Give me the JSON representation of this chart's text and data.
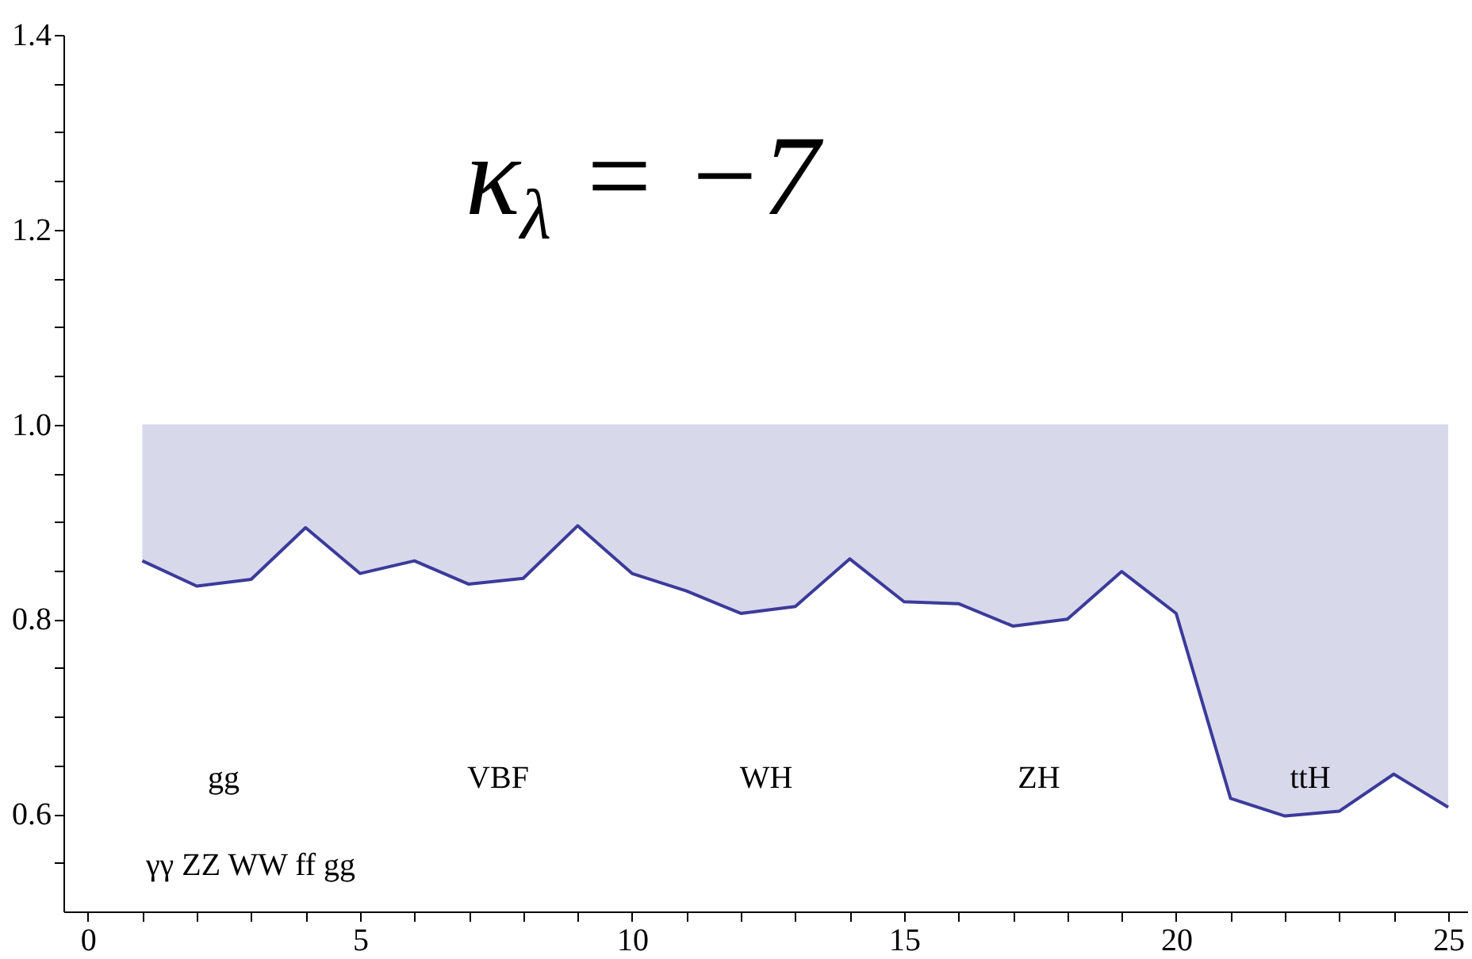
{
  "chart_data": {
    "type": "line",
    "x": [
      1,
      2,
      3,
      4,
      5,
      6,
      7,
      8,
      9,
      10,
      11,
      12,
      13,
      14,
      15,
      16,
      17,
      18,
      19,
      20,
      21,
      22,
      23,
      24,
      25
    ],
    "series": [
      {
        "color": "#3b3b9b",
        "values": [
          0.86,
          0.834,
          0.841,
          0.894,
          0.847,
          0.86,
          0.836,
          0.842,
          0.896,
          0.847,
          0.829,
          0.806,
          0.813,
          0.862,
          0.818,
          0.816,
          0.793,
          0.8,
          0.849,
          0.806,
          0.616,
          0.598,
          0.603,
          0.641,
          0.607
        ],
        "lower": [
          0.86,
          0.834,
          0.841,
          0.894,
          0.847,
          0.86,
          0.836,
          0.842,
          0.896,
          0.847,
          0.829,
          0.806,
          0.813,
          0.862,
          0.818,
          0.816,
          0.793,
          0.8,
          0.849,
          0.806,
          0.616,
          0.598,
          0.603,
          0.641,
          0.607
        ],
        "upper": [
          1,
          1,
          1,
          1,
          1,
          1,
          1,
          1,
          1,
          1,
          1,
          1,
          1,
          1,
          1,
          1,
          1,
          1,
          1,
          1,
          1,
          1,
          1,
          1,
          1
        ]
      }
    ],
    "xlim": [
      -0.45,
      25.35
    ],
    "ylim": [
      0.5,
      1.4
    ],
    "xticks": [
      0,
      {
        "value": 1,
        "label": null
      },
      {
        "value": 2,
        "label": null
      },
      {
        "value": 3,
        "label": null
      },
      {
        "value": 4,
        "label": null
      },
      5,
      {
        "value": 6,
        "label": null
      },
      {
        "value": 7,
        "label": null
      },
      {
        "value": 8,
        "label": null
      },
      {
        "value": 9,
        "label": null
      },
      10,
      {
        "value": 11,
        "label": null
      },
      {
        "value": 12,
        "label": null
      },
      {
        "value": 13,
        "label": null
      },
      {
        "value": 14,
        "label": null
      },
      15,
      {
        "value": 16,
        "label": null
      },
      {
        "value": 17,
        "label": null
      },
      {
        "value": 18,
        "label": null
      },
      {
        "value": 19,
        "label": null
      },
      20,
      {
        "value": 21,
        "label": null
      },
      {
        "value": 22,
        "label": null
      },
      {
        "value": 23,
        "label": null
      },
      {
        "value": 24,
        "label": null
      },
      25
    ],
    "yticks": [
      {
        "value": 0.55,
        "label": null
      },
      0.6,
      {
        "value": 0.65,
        "label": null
      },
      {
        "value": 0.7,
        "label": null
      },
      {
        "value": 0.75,
        "label": null
      },
      0.8,
      {
        "value": 0.85,
        "label": null
      },
      {
        "value": 0.9,
        "label": null
      },
      {
        "value": 0.95,
        "label": null
      },
      {
        "value": 1,
        "label": "1.0"
      },
      {
        "value": 1.05,
        "label": null
      },
      {
        "value": 1.1,
        "label": null
      },
      {
        "value": 1.15,
        "label": null
      },
      1.2,
      {
        "value": 1.25,
        "label": null
      },
      {
        "value": 1.3,
        "label": null
      },
      {
        "value": 1.35,
        "label": null
      },
      1.4
    ],
    "grid": false,
    "annotations": [
      "κ$_{λ}$ = −7",
      "gg",
      "VBF",
      "WH",
      "ZH",
      "ttH",
      "γγ ZZ WW ff gg"
    ]
  }
}
